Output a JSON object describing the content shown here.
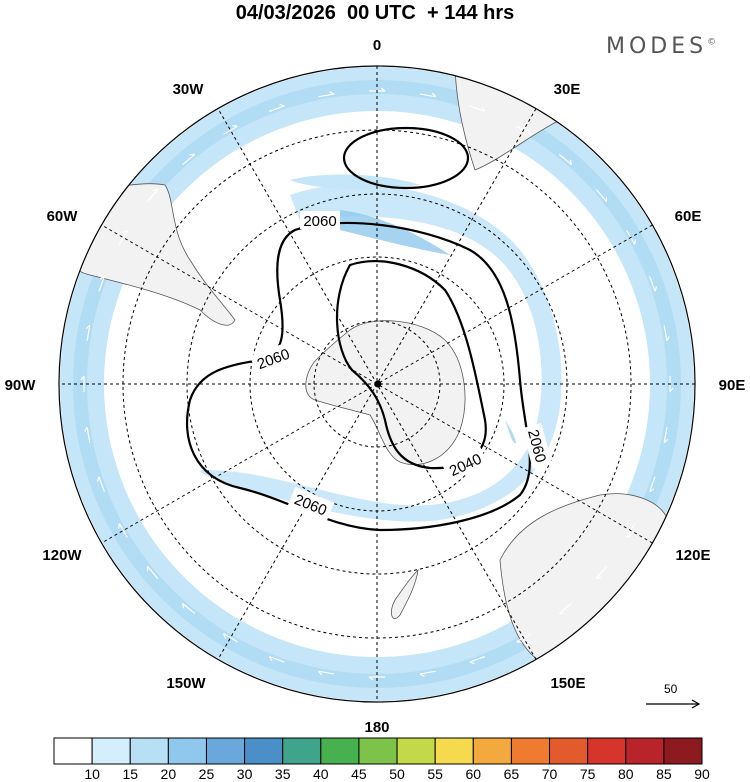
{
  "header": {
    "title": "04/03/2026  00 UTC  + 144 hrs",
    "brand": "MODES",
    "brand_mark": "©"
  },
  "longitudes": {
    "n": "0",
    "n30e": "30E",
    "n60e": "60E",
    "e90": "90E",
    "s120e": "120E",
    "s150e": "150E",
    "s": "180",
    "s150w": "150W",
    "s120w": "120W",
    "w90": "90W",
    "n60w": "60W",
    "n30w": "30W"
  },
  "contours": {
    "c1": "2060",
    "c2": "2060",
    "c3": "2060",
    "c4": "2060",
    "c5": "2040"
  },
  "wind_scale": {
    "label": "50"
  },
  "colorbar": {
    "labels": [
      "10",
      "15",
      "20",
      "25",
      "30",
      "35",
      "40",
      "45",
      "50",
      "55",
      "60",
      "65",
      "70",
      "75",
      "80",
      "85",
      "90"
    ],
    "colors": [
      "#ffffff",
      "#d4eefb",
      "#b8e0f5",
      "#8fc8ec",
      "#6aa8dc",
      "#4a8fc8",
      "#3fa58a",
      "#48b14f",
      "#7dc34a",
      "#c3d94a",
      "#f6da4e",
      "#f4a93f",
      "#ef7b30",
      "#e35a2d",
      "#d5352b",
      "#b9232a",
      "#8c1a1f"
    ]
  }
}
